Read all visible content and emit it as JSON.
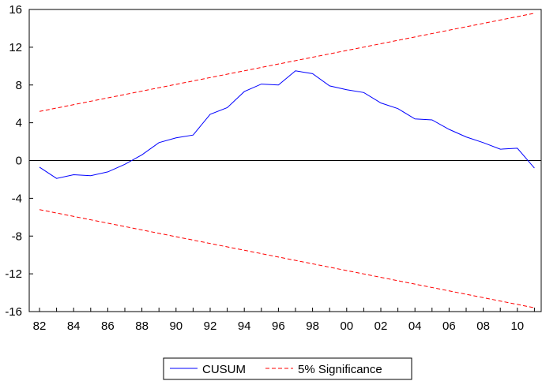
{
  "chart_data": {
    "type": "line",
    "x": [
      "82",
      "83",
      "84",
      "85",
      "86",
      "87",
      "88",
      "89",
      "90",
      "91",
      "92",
      "93",
      "94",
      "95",
      "96",
      "97",
      "98",
      "99",
      "00",
      "01",
      "02",
      "03",
      "04",
      "05",
      "06",
      "07",
      "08",
      "09",
      "10",
      "11"
    ],
    "x_tick_labels": [
      "82",
      "84",
      "86",
      "88",
      "90",
      "92",
      "94",
      "96",
      "98",
      "00",
      "02",
      "04",
      "06",
      "08",
      "10"
    ],
    "y_tick_labels": [
      "16",
      "12",
      "8",
      "4",
      "0",
      "-4",
      "-8",
      "-12",
      "-16"
    ],
    "ylim": [
      -16,
      16
    ],
    "series": [
      {
        "name": "CUSUM",
        "color": "#0000ff",
        "values": [
          -0.7,
          -1.9,
          -1.5,
          -1.6,
          -1.2,
          -0.4,
          0.6,
          1.9,
          2.4,
          2.7,
          4.9,
          5.6,
          7.3,
          8.1,
          8.0,
          9.5,
          9.2,
          7.9,
          7.5,
          7.2,
          6.1,
          5.5,
          4.4,
          4.3,
          3.3,
          2.5,
          1.9,
          1.2,
          1.3,
          -0.8
        ]
      },
      {
        "name": "5% Significance",
        "color": "#ff0000",
        "dashed": true,
        "upper": [
          5.2,
          15.6
        ],
        "lower": [
          -5.2,
          -15.6
        ]
      }
    ],
    "zero_line": true,
    "legend_position": "bottom-center",
    "grid": false
  }
}
